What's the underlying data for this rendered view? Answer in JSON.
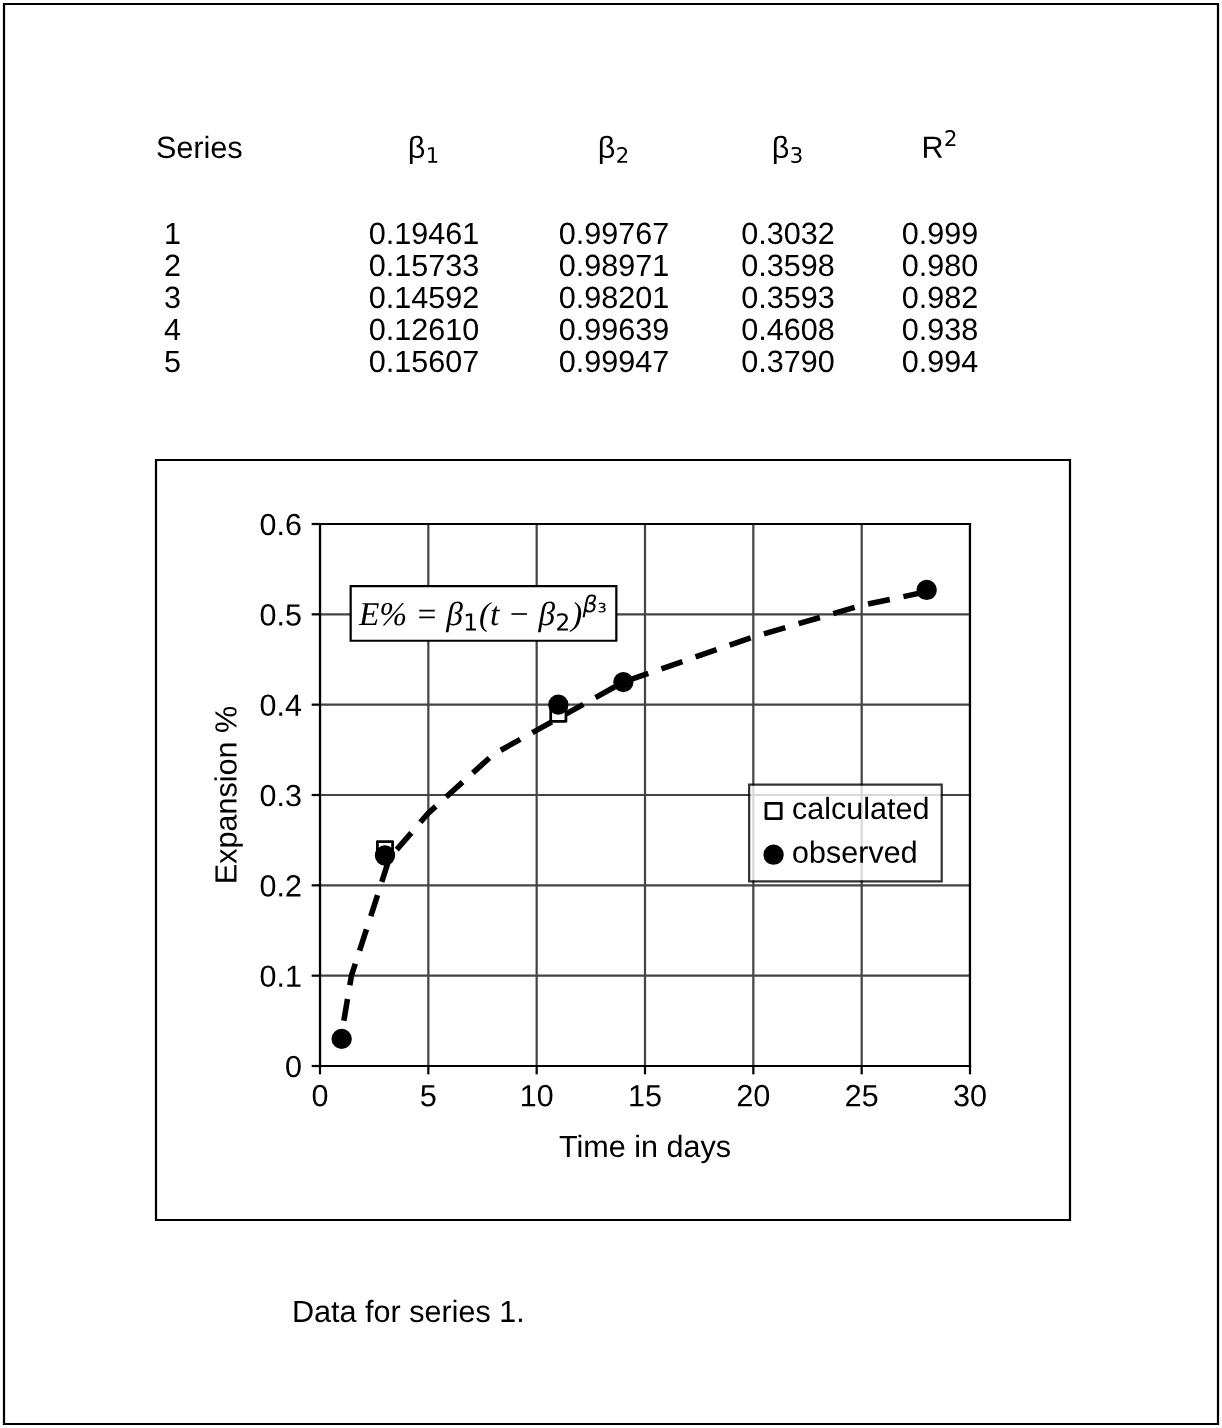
{
  "chart_data": {
    "type": "scatter",
    "xlabel": "Time in days",
    "ylabel": "Expansion %",
    "xlim": [
      0,
      30
    ],
    "xticks": [
      0,
      5,
      10,
      15,
      20,
      25,
      30
    ],
    "ylim": [
      0,
      0.6
    ],
    "yticks": [
      0,
      0.1,
      0.2,
      0.3,
      0.4,
      0.5,
      0.6
    ],
    "grid": true,
    "legend": "right",
    "series": [
      {
        "name": "calculated",
        "marker": "square",
        "color": "#000000",
        "x": [
          3,
          11
        ],
        "values": [
          0.24,
          0.39
        ]
      },
      {
        "name": "observed",
        "marker": "circle",
        "color": "#000000",
        "x": [
          1,
          3,
          11,
          14,
          28
        ],
        "values": [
          0.03,
          0.233,
          0.4,
          0.425,
          0.527
        ]
      },
      {
        "type": "line",
        "line_style": "dashed",
        "color": "#000000",
        "x": [
          1.1,
          1.45,
          2.4,
          3.2,
          5,
          8,
          11,
          14,
          20,
          25,
          28
        ],
        "values": [
          0.05,
          0.1,
          0.17,
          0.23,
          0.28,
          0.345,
          0.385,
          0.425,
          0.475,
          0.51,
          0.525
        ]
      }
    ],
    "annotations": [
      "E% = β$_{1}$(t − β$_{2}$)$^{β₃}$",
      "Series",
      "β$_{1}$",
      "β$_{2}$",
      "β$_{3}$",
      "R$^{2}$",
      "1",
      "0.19461",
      "0.99767",
      "0.3032",
      "0.999",
      "2",
      "0.15733",
      "0.98971",
      "0.3598",
      "0.980",
      "3",
      "0.14592",
      "0.98201",
      "0.3593",
      "0.982",
      "4",
      "0.12610",
      "0.99639",
      "0.4608",
      "0.938",
      "5",
      "0.15607",
      "0.99947",
      "0.3790",
      "0.994",
      "Data for series 1."
    ]
  }
}
